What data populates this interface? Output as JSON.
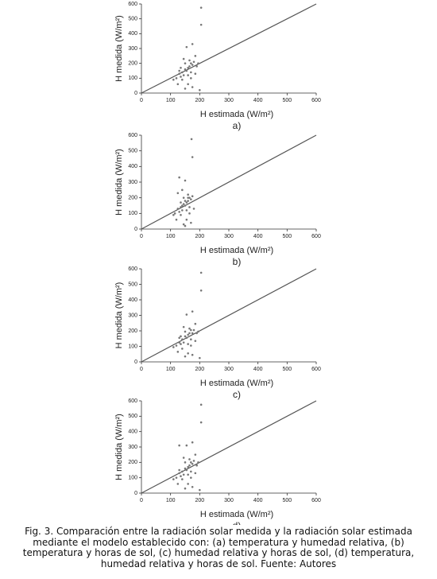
{
  "chart_data": [
    {
      "type": "scatter",
      "x_label": "H estimada (W/m²)",
      "y_label": "H medida (W/m²)",
      "label": "a)",
      "color": "#777777",
      "xlim": [
        0,
        600
      ],
      "ylim": [
        0,
        600
      ],
      "xticks": [
        0,
        100,
        200,
        300,
        400,
        500,
        600
      ],
      "yticks": [
        0,
        100,
        200,
        300,
        400,
        500,
        600
      ],
      "diagonal": {
        "x": [
          0,
          600
        ],
        "y": [
          0,
          600
        ]
      },
      "x": [
        205,
        205,
        110,
        120,
        125,
        130,
        135,
        140,
        140,
        145,
        150,
        150,
        155,
        155,
        160,
        160,
        165,
        165,
        170,
        170,
        175,
        175,
        180,
        185,
        190,
        195,
        150,
        160,
        145,
        170,
        135,
        175,
        185,
        200,
        130
      ],
      "values": [
        575,
        460,
        90,
        100,
        60,
        130,
        110,
        140,
        90,
        120,
        160,
        200,
        150,
        310,
        170,
        120,
        180,
        220,
        140,
        200,
        190,
        330,
        210,
        250,
        180,
        200,
        30,
        60,
        230,
        100,
        170,
        40,
        130,
        20,
        150
      ]
    },
    {
      "type": "scatter",
      "x_label": "H estimada (W/m²)",
      "y_label": "H medida (W/m²)",
      "label": "b)",
      "color": "#777777",
      "xlim": [
        0,
        600
      ],
      "ylim": [
        0,
        600
      ],
      "xticks": [
        0,
        100,
        200,
        300,
        400,
        500,
        600
      ],
      "yticks": [
        0,
        100,
        200,
        300,
        400,
        500,
        600
      ],
      "diagonal": {
        "x": [
          0,
          600
        ],
        "y": [
          0,
          600
        ]
      },
      "x": [
        172,
        175,
        110,
        115,
        120,
        125,
        130,
        135,
        135,
        140,
        145,
        145,
        150,
        150,
        155,
        155,
        160,
        160,
        165,
        165,
        170,
        130,
        175,
        140,
        150,
        160,
        145,
        155,
        125,
        165,
        135,
        170,
        180,
        150,
        140
      ],
      "values": [
        575,
        460,
        90,
        100,
        60,
        130,
        110,
        140,
        90,
        120,
        160,
        200,
        150,
        310,
        170,
        120,
        180,
        220,
        140,
        200,
        190,
        330,
        210,
        250,
        180,
        200,
        30,
        60,
        230,
        100,
        170,
        40,
        130,
        20,
        150
      ]
    },
    {
      "type": "scatter",
      "x_label": "H estimada (W/m²)",
      "y_label": "H medida (W/m²)",
      "label": "c)",
      "color": "#777777",
      "xlim": [
        0,
        600
      ],
      "ylim": [
        0,
        600
      ],
      "xticks": [
        0,
        100,
        200,
        300,
        400,
        500,
        600
      ],
      "yticks": [
        0,
        100,
        200,
        300,
        400,
        500,
        600
      ],
      "diagonal": {
        "x": [
          0,
          600
        ],
        "y": [
          0,
          600
        ]
      },
      "x": [
        205,
        205,
        110,
        120,
        125,
        130,
        135,
        140,
        140,
        145,
        150,
        150,
        155,
        155,
        160,
        160,
        165,
        165,
        170,
        170,
        175,
        175,
        180,
        185,
        190,
        195,
        150,
        160,
        145,
        170,
        135,
        175,
        185,
        200,
        130
      ],
      "values": [
        575,
        460,
        95,
        105,
        65,
        125,
        115,
        145,
        85,
        125,
        165,
        195,
        155,
        305,
        175,
        115,
        185,
        215,
        145,
        205,
        185,
        325,
        205,
        245,
        185,
        195,
        35,
        55,
        225,
        105,
        165,
        45,
        135,
        25,
        155
      ]
    },
    {
      "type": "scatter",
      "x_label": "H estimada (W/m²)",
      "y_label": "H medida (W/m²)",
      "label": "d)",
      "color": "#777777",
      "xlim": [
        0,
        600
      ],
      "ylim": [
        0,
        600
      ],
      "xticks": [
        0,
        100,
        200,
        300,
        400,
        500,
        600
      ],
      "yticks": [
        0,
        100,
        200,
        300,
        400,
        500,
        600
      ],
      "diagonal": {
        "x": [
          0,
          600
        ],
        "y": [
          0,
          600
        ]
      },
      "x": [
        205,
        205,
        110,
        120,
        125,
        130,
        135,
        140,
        140,
        145,
        150,
        150,
        155,
        155,
        160,
        160,
        165,
        165,
        170,
        170,
        175,
        175,
        180,
        185,
        190,
        195,
        150,
        160,
        145,
        170,
        130,
        175,
        185,
        200,
        130
      ],
      "values": [
        575,
        460,
        90,
        100,
        60,
        130,
        110,
        140,
        90,
        120,
        160,
        200,
        150,
        310,
        170,
        120,
        180,
        220,
        140,
        200,
        190,
        330,
        210,
        250,
        180,
        200,
        30,
        60,
        230,
        100,
        310,
        40,
        130,
        20,
        150
      ]
    }
  ],
  "caption": "Fig. 3. Comparación entre la radiación solar medida y la radiación solar estimada mediante el modelo establecido con: (a) temperatura y humedad relativa, (b) temperatura y horas de sol, (c) humedad relativa y horas de sol, (d) temperatura, humedad relativa y horas de sol. Fuente: Autores"
}
